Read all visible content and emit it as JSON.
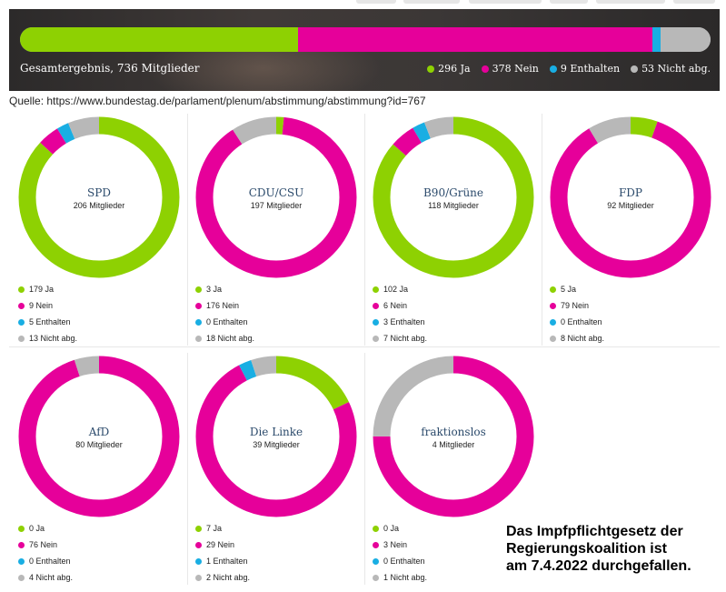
{
  "colors": {
    "ja": "#8ed102",
    "nein": "#e6009a",
    "enthalten": "#19aee3",
    "nicht": "#b8b8b8"
  },
  "overall": {
    "label": "Gesamtergebnis, 736 Mitglieder",
    "legend": [
      "296 Ja",
      "378 Nein",
      "9 Enthalten",
      "53 Nicht abg."
    ]
  },
  "source": "Quelle: https://www.bundestag.de/parlament/plenum/abstimmung/abstimmung?id=767",
  "note": {
    "lines": [
      "Das Impfpflichtgesetz der",
      "Regierungskoalition ist",
      "am 7.4.2022 durchgefallen."
    ]
  },
  "chart_data": {
    "type": "pie",
    "title": "",
    "categories": [
      "Ja",
      "Nein",
      "Enthalten",
      "Nicht abg."
    ],
    "overall": {
      "name": "Gesamtergebnis",
      "members": 736,
      "values": [
        296,
        378,
        9,
        53
      ]
    },
    "parties": [
      {
        "name": "SPD",
        "members_label": "206 Mitglieder",
        "values": [
          179,
          9,
          5,
          13
        ],
        "legend": [
          "179 Ja",
          "9 Nein",
          "5 Enthalten",
          "13 Nicht abg."
        ]
      },
      {
        "name": "CDU/CSU",
        "members_label": "197 Mitglieder",
        "values": [
          3,
          176,
          0,
          18
        ],
        "legend": [
          "3 Ja",
          "176 Nein",
          "0 Enthalten",
          "18 Nicht abg."
        ]
      },
      {
        "name": "B90/Grüne",
        "members_label": "118 Mitglieder",
        "values": [
          102,
          6,
          3,
          7
        ],
        "legend": [
          "102 Ja",
          "6 Nein",
          "3 Enthalten",
          "7 Nicht abg."
        ]
      },
      {
        "name": "FDP",
        "members_label": "92 Mitglieder",
        "values": [
          5,
          79,
          0,
          8
        ],
        "legend": [
          "5 Ja",
          "79 Nein",
          "0 Enthalten",
          "8 Nicht abg."
        ]
      },
      {
        "name": "AfD",
        "members_label": "80 Mitglieder",
        "values": [
          0,
          76,
          0,
          4
        ],
        "legend": [
          "0 Ja",
          "76 Nein",
          "0 Enthalten",
          "4 Nicht abg."
        ]
      },
      {
        "name": "Die Linke",
        "members_label": "39 Mitglieder",
        "values": [
          7,
          29,
          1,
          2
        ],
        "legend": [
          "7 Ja",
          "29 Nein",
          "1 Enthalten",
          "2 Nicht abg."
        ]
      },
      {
        "name": "fraktionslos",
        "members_label": "4 Mitglieder",
        "values": [
          0,
          3,
          0,
          1
        ],
        "legend": [
          "0 Ja",
          "3 Nein",
          "0 Enthalten",
          "1 Nicht abg."
        ]
      }
    ]
  }
}
